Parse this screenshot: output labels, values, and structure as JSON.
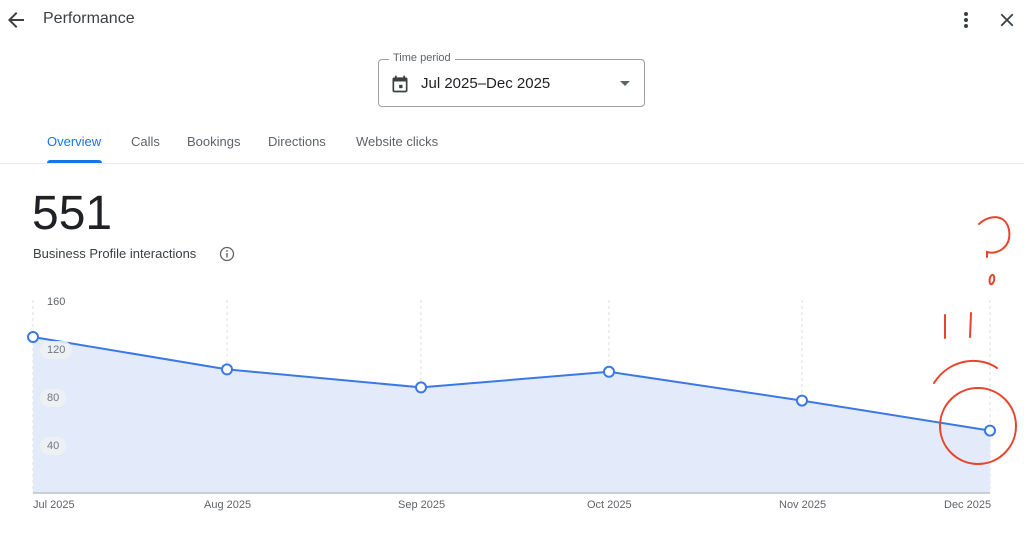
{
  "header": {
    "title": "Performance",
    "back_icon": "arrow-back-icon",
    "more_icon": "more-vert-icon",
    "close_icon": "close-icon"
  },
  "time_period": {
    "label": "Time period",
    "value": "Jul 2025–Dec 2025",
    "icon": "calendar-icon",
    "dropdown_icon": "caret-down-icon"
  },
  "tabs": [
    {
      "label": "Overview",
      "active": true
    },
    {
      "label": "Calls",
      "active": false
    },
    {
      "label": "Bookings",
      "active": false
    },
    {
      "label": "Directions",
      "active": false
    },
    {
      "label": "Website clicks",
      "active": false
    }
  ],
  "summary": {
    "total": "551",
    "label": "Business Profile interactions",
    "info_icon": "info-icon"
  },
  "colors": {
    "accent": "#1a73e8",
    "line": "#3b78e7",
    "area_fill": "#e3ebfa",
    "annotation": "#e8442c"
  },
  "chart_data": {
    "type": "area",
    "title": "Business Profile interactions",
    "xlabel": "",
    "ylabel": "",
    "categories": [
      "Jul 2025",
      "Aug 2025",
      "Sep 2025",
      "Oct 2025",
      "Nov 2025",
      "Dec 2025"
    ],
    "series": [
      {
        "name": "Business Profile interactions",
        "values": [
          130,
          103,
          88,
          101,
          77,
          52
        ]
      }
    ],
    "y_ticks": [
      "160",
      "120",
      "80",
      "40"
    ],
    "ylim": [
      0,
      160
    ],
    "grid": "vertical dashed",
    "legend": "none"
  },
  "annotations": {
    "description": "Hand-drawn red marks: question mark and sad face near the Dec 2025 point, with a circle around the Dec 2025 data point"
  }
}
